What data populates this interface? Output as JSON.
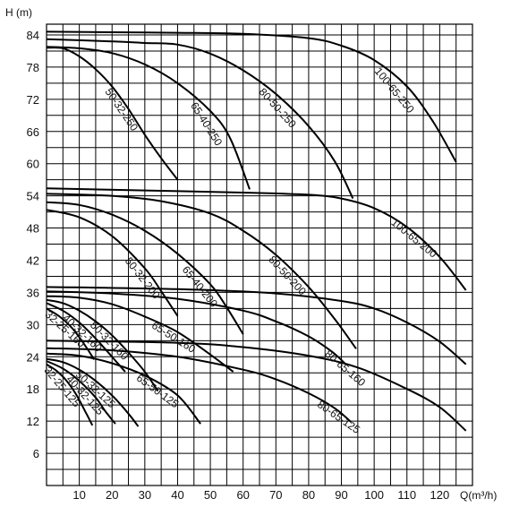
{
  "chart_data": {
    "type": "line",
    "title": "",
    "ylabel": "H (m)",
    "xlabel": "Q(m³/h)",
    "xlim": [
      0,
      130
    ],
    "ylim": [
      0,
      86
    ],
    "grid": true,
    "xticks": [
      10,
      20,
      30,
      40,
      50,
      60,
      70,
      80,
      90,
      100,
      110,
      120
    ],
    "yticks": [
      6,
      12,
      18,
      24,
      30,
      36,
      42,
      48,
      54,
      60,
      66,
      72,
      78,
      84
    ],
    "series": [
      {
        "name": "100-65-250",
        "values": [
          [
            0,
            84.6
          ],
          [
            20,
            84.5
          ],
          [
            40,
            84.4
          ],
          [
            60,
            84.2
          ],
          [
            80,
            83.4
          ],
          [
            90,
            82.0
          ],
          [
            100,
            79.3
          ],
          [
            110,
            74.4
          ],
          [
            118,
            67.8
          ],
          [
            125,
            60.3
          ]
        ]
      },
      {
        "name": "80-50-250",
        "values": [
          [
            0,
            83.2
          ],
          [
            20,
            82.8
          ],
          [
            30,
            82.5
          ],
          [
            40,
            82.2
          ],
          [
            50,
            80.5
          ],
          [
            60,
            77.4
          ],
          [
            70,
            73.0
          ],
          [
            80,
            67.0
          ],
          [
            88,
            60.4
          ],
          [
            93.5,
            53.5
          ]
        ]
      },
      {
        "name": "65-40-250",
        "values": [
          [
            0,
            81.8
          ],
          [
            10,
            81.5
          ],
          [
            20,
            80.6
          ],
          [
            30,
            78.5
          ],
          [
            40,
            75.0
          ],
          [
            50,
            69.8
          ],
          [
            56,
            64.8
          ],
          [
            62,
            55.2
          ]
        ]
      },
      {
        "name": "50-32-250",
        "values": [
          [
            0,
            81.6
          ],
          [
            5,
            81.5
          ],
          [
            10,
            80.0
          ],
          [
            15,
            77.6
          ],
          [
            20,
            74.4
          ],
          [
            25,
            70.2
          ],
          [
            30,
            65.4
          ],
          [
            35,
            61.0
          ],
          [
            40,
            57.0
          ]
        ]
      },
      {
        "name": "100-65-200",
        "values": [
          [
            0,
            55.4
          ],
          [
            30,
            55.0
          ],
          [
            60,
            54.6
          ],
          [
            80,
            54.2
          ],
          [
            90,
            53.5
          ],
          [
            100,
            51.7
          ],
          [
            110,
            48.2
          ],
          [
            120,
            42.6
          ],
          [
            128,
            36.4
          ]
        ]
      },
      {
        "name": "80-50-200",
        "values": [
          [
            0,
            54.4
          ],
          [
            20,
            54.0
          ],
          [
            35,
            53.0
          ],
          [
            50,
            50.7
          ],
          [
            60,
            47.5
          ],
          [
            70,
            43.0
          ],
          [
            80,
            37.0
          ],
          [
            88,
            31.0
          ],
          [
            94.5,
            25.5
          ]
        ]
      },
      {
        "name": "65-40-200",
        "values": [
          [
            0,
            52.8
          ],
          [
            10,
            52.3
          ],
          [
            20,
            50.5
          ],
          [
            30,
            47.5
          ],
          [
            40,
            43.2
          ],
          [
            50,
            37.5
          ],
          [
            55,
            33.2
          ],
          [
            60,
            28.2
          ]
        ]
      },
      {
        "name": "50-32-200",
        "values": [
          [
            0,
            51.4
          ],
          [
            10,
            50.0
          ],
          [
            20,
            46.5
          ],
          [
            30,
            40.5
          ],
          [
            35,
            36.2
          ],
          [
            40,
            31.6
          ]
        ]
      },
      {
        "name": "",
        "values": [
          [
            0,
            37.0
          ],
          [
            40,
            36.6
          ],
          [
            70,
            35.8
          ],
          [
            90,
            34.4
          ],
          [
            100,
            33.0
          ],
          [
            110,
            30.4
          ],
          [
            120,
            26.8
          ],
          [
            128,
            22.6
          ]
        ]
      },
      {
        "name": "80-65-160",
        "values": [
          [
            0,
            36.2
          ],
          [
            20,
            35.8
          ],
          [
            40,
            34.8
          ],
          [
            60,
            32.6
          ],
          [
            70,
            30.6
          ],
          [
            80,
            27.8
          ],
          [
            87,
            25.0
          ],
          [
            91,
            22.8
          ]
        ]
      },
      {
        "name": "65-50-160",
        "values": [
          [
            0,
            35.3
          ],
          [
            10,
            35.0
          ],
          [
            20,
            33.8
          ],
          [
            30,
            31.5
          ],
          [
            40,
            28.6
          ],
          [
            50,
            24.4
          ],
          [
            57,
            21.2
          ]
        ]
      },
      {
        "name": "50-32-160",
        "values": [
          [
            0,
            34.6
          ],
          [
            5,
            34.0
          ],
          [
            10,
            32.6
          ],
          [
            15,
            30.6
          ],
          [
            20,
            28.0
          ],
          [
            25,
            24.8
          ],
          [
            30,
            21.2
          ],
          [
            34,
            17.6
          ]
        ]
      },
      {
        "name": "40-32-160",
        "values": [
          [
            0,
            34.0
          ],
          [
            5,
            32.6
          ],
          [
            10,
            30.4
          ],
          [
            15,
            27.4
          ],
          [
            20,
            24.0
          ],
          [
            24,
            21.2
          ]
        ]
      },
      {
        "name": "32-25-160",
        "values": [
          [
            0,
            33.0
          ],
          [
            4,
            31.5
          ],
          [
            8,
            29.2
          ],
          [
            12,
            25.9
          ],
          [
            14.5,
            23.5
          ]
        ]
      },
      {
        "name": "",
        "values": [
          [
            0,
            27.0
          ],
          [
            40,
            26.6
          ],
          [
            60,
            25.8
          ],
          [
            80,
            24.2
          ],
          [
            95,
            22.0
          ],
          [
            110,
            18.0
          ],
          [
            120,
            14.6
          ],
          [
            128,
            10.2
          ]
        ]
      },
      {
        "name": "80-65-125",
        "values": [
          [
            0,
            25.6
          ],
          [
            20,
            25.2
          ],
          [
            40,
            24.0
          ],
          [
            60,
            21.6
          ],
          [
            70,
            19.8
          ],
          [
            80,
            17.2
          ],
          [
            88,
            14.4
          ],
          [
            93,
            11.8
          ]
        ]
      },
      {
        "name": "65-50-125",
        "values": [
          [
            0,
            24.6
          ],
          [
            10,
            24.2
          ],
          [
            20,
            22.8
          ],
          [
            30,
            20.5
          ],
          [
            40,
            16.8
          ],
          [
            47,
            11.5
          ]
        ]
      },
      {
        "name": "50-32-125",
        "values": [
          [
            0,
            23.6
          ],
          [
            5,
            23.0
          ],
          [
            10,
            21.6
          ],
          [
            15,
            19.5
          ],
          [
            20,
            16.8
          ],
          [
            25,
            13.4
          ],
          [
            28,
            11.0
          ]
        ]
      },
      {
        "name": "40-32-125",
        "values": [
          [
            0,
            23.2
          ],
          [
            5,
            21.8
          ],
          [
            10,
            19.5
          ],
          [
            15,
            16.4
          ],
          [
            18,
            13.8
          ],
          [
            21,
            11.5
          ]
        ]
      },
      {
        "name": "32-25-125",
        "values": [
          [
            0,
            22.6
          ],
          [
            3,
            21.4
          ],
          [
            6,
            19.6
          ],
          [
            9,
            17.0
          ],
          [
            12,
            13.6
          ],
          [
            14,
            11.2
          ]
        ]
      }
    ]
  }
}
